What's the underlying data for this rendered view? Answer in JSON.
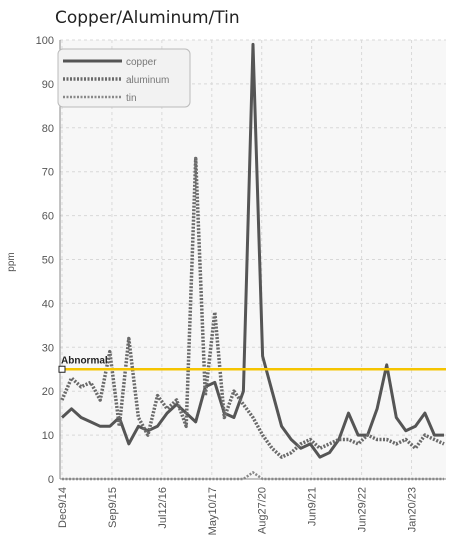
{
  "chart_data": {
    "type": "line",
    "title": "Copper/Aluminum/Tin",
    "ylabel": "ppm",
    "xlabel": "",
    "ylim": [
      0,
      100
    ],
    "y_ticks": [
      0,
      10,
      20,
      30,
      40,
      50,
      60,
      70,
      80,
      90,
      100
    ],
    "x_tick_labels": [
      "Dec9/14",
      "Sep9/15",
      "Jul12/16",
      "May10/17",
      "Aug27/20",
      "Jun9/21",
      "Jun29/22",
      "Jan20/23"
    ],
    "grid": true,
    "legend_position": "top-left",
    "threshold": {
      "label": "Abnormal",
      "value": 25,
      "color": "#f5c400"
    },
    "series": [
      {
        "name": "copper",
        "color": "#555555",
        "style": "solid",
        "values": [
          14,
          16,
          14,
          13,
          12,
          12,
          14,
          8,
          12,
          11,
          12,
          15,
          17,
          15,
          13,
          21,
          22,
          15,
          14,
          20,
          99,
          28,
          20,
          12,
          9,
          7,
          8,
          5,
          6,
          9,
          15,
          10,
          10,
          16,
          26,
          14,
          11,
          12,
          15,
          10,
          10
        ]
      },
      {
        "name": "aluminum",
        "color": "#6a6a6a",
        "style": "dotted",
        "values": [
          18,
          23,
          21,
          22,
          18,
          29,
          12,
          32,
          14,
          10,
          19,
          16,
          18,
          12,
          73,
          19,
          38,
          14,
          20,
          17,
          14,
          10,
          7,
          5,
          6,
          8,
          9,
          7,
          8,
          9,
          9,
          8,
          10,
          9,
          9,
          8,
          9,
          7,
          10,
          9,
          8
        ]
      },
      {
        "name": "tin",
        "color": "#888888",
        "style": "dotted",
        "values": [
          0,
          0,
          0,
          0,
          0,
          0,
          0,
          0,
          0,
          0,
          0,
          0,
          0,
          0,
          0,
          0,
          0,
          0,
          0,
          0,
          1.5,
          0,
          0,
          0,
          0,
          0,
          0,
          0,
          0,
          0,
          0,
          0,
          0,
          0,
          0,
          0,
          0,
          0,
          0,
          0,
          0
        ]
      }
    ]
  }
}
